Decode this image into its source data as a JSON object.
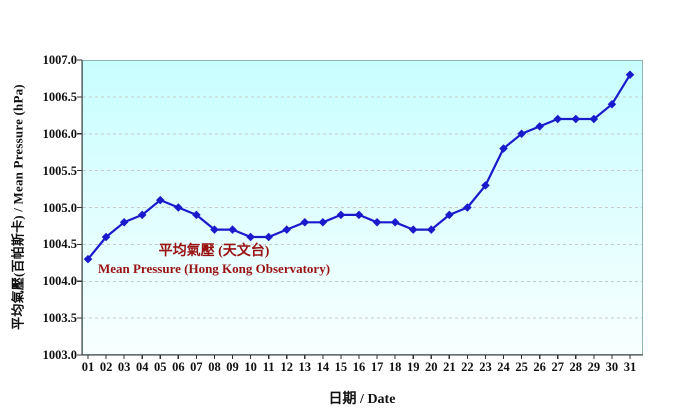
{
  "chart_data": {
    "type": "line",
    "title": "",
    "x_axis_title": "日期 / Date",
    "y_axis_title": "平均氣壓(百帕斯卡) / Mean Pressure (hPa)",
    "legend": {
      "zh": "平均氣壓 (天文台)",
      "en": "Mean Pressure (Hong Kong Observatory)"
    },
    "categories": [
      "01",
      "02",
      "03",
      "04",
      "05",
      "06",
      "07",
      "08",
      "09",
      "10",
      "11",
      "12",
      "13",
      "14",
      "15",
      "16",
      "17",
      "18",
      "19",
      "20",
      "21",
      "22",
      "23",
      "24",
      "25",
      "26",
      "27",
      "28",
      "29",
      "30",
      "31"
    ],
    "series": [
      {
        "name": "Mean Pressure (Hong Kong Observatory)",
        "values": [
          1004.3,
          1004.6,
          1004.8,
          1004.9,
          1005.1,
          1005.0,
          1004.9,
          1004.7,
          1004.7,
          1004.6,
          1004.6,
          1004.7,
          1004.8,
          1004.8,
          1004.9,
          1004.9,
          1004.8,
          1004.8,
          1004.7,
          1004.7,
          1004.9,
          1005.0,
          1005.3,
          1005.8,
          1006.0,
          1006.1,
          1006.2,
          1006.2,
          1006.2,
          1006.4,
          1006.8
        ]
      }
    ],
    "ylim": [
      1003.0,
      1007.0
    ],
    "y_tick_step": 0.5,
    "y_ticks": [
      "1003.0",
      "1003.5",
      "1004.0",
      "1004.5",
      "1005.0",
      "1005.5",
      "1006.0",
      "1006.5",
      "1007.0"
    ],
    "grid": "horizontal-dashed",
    "legend_position": "inside-plot-left-center",
    "marker": "diamond",
    "colors": {
      "line": "#1a1acd",
      "legend_text": "#991111",
      "plot_bg_top": "#c8feff",
      "plot_bg_bottom": "#f8ffff",
      "gridline": "#c9c9c9",
      "axis": "#333333",
      "tick_text": "#111111"
    }
  }
}
